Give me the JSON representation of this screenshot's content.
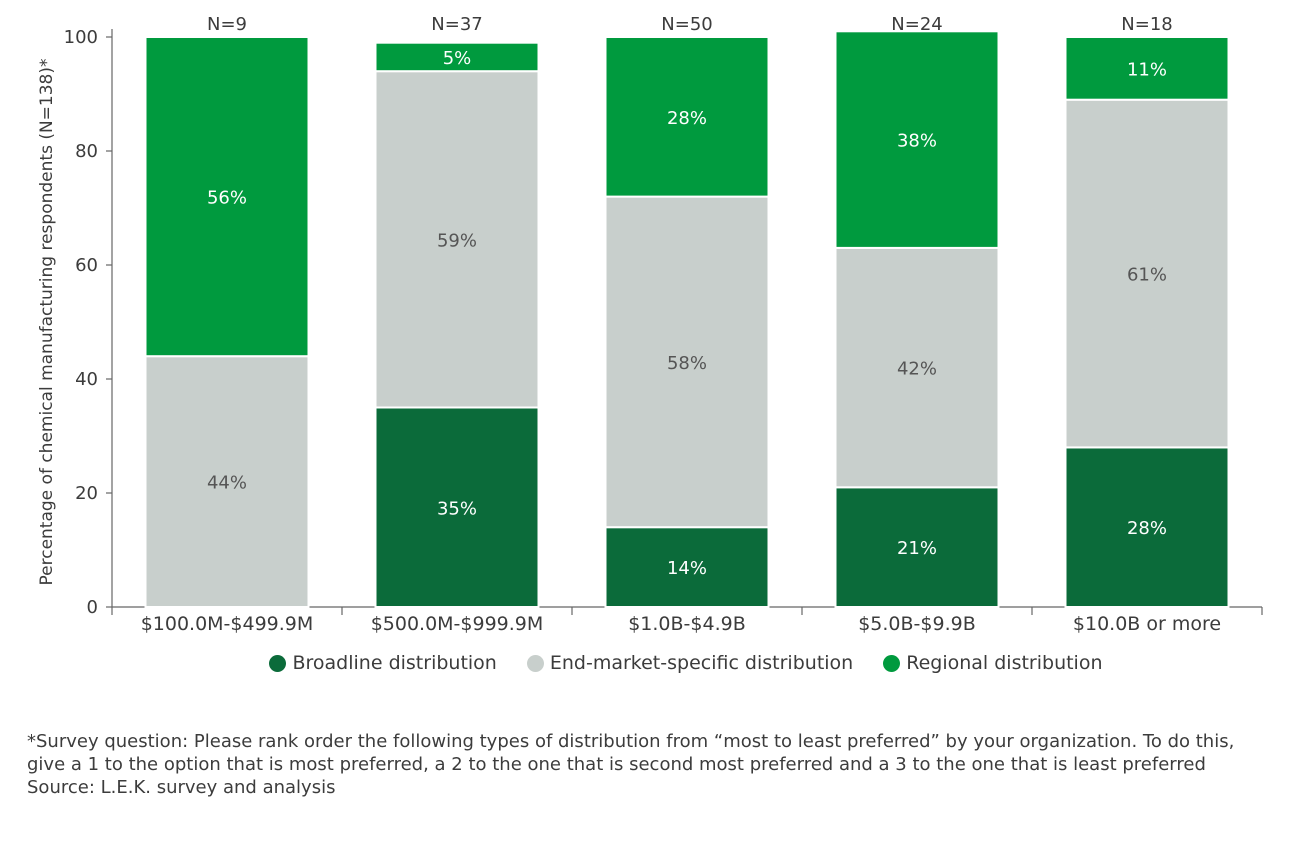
{
  "chart_data": {
    "type": "bar",
    "stacked": true,
    "categories": [
      "$100.0M-$499.9M",
      "$500.0M-$999.9M",
      "$1.0B-$4.9B",
      "$5.0B-$9.9B",
      "$10.0B or more"
    ],
    "top_labels": [
      "N=9",
      "N=37",
      "N=50",
      "N=24",
      "N=18"
    ],
    "series": [
      {
        "name": "Broadline distribution",
        "values": [
          0,
          35,
          14,
          21,
          28
        ],
        "labels": [
          "",
          "35%",
          "14%",
          "21%",
          "28%"
        ],
        "color": "#0b6b3a"
      },
      {
        "name": "End-market-specific distribution",
        "values": [
          44,
          59,
          58,
          42,
          61
        ],
        "labels": [
          "44%",
          "59%",
          "58%",
          "42%",
          "61%"
        ],
        "color": "#c8cfcc"
      },
      {
        "name": "Regional distribution",
        "values": [
          56,
          5,
          28,
          38,
          11
        ],
        "labels": [
          "56%",
          "5%",
          "28%",
          "38%",
          "11%"
        ],
        "color": "#009a3e"
      }
    ],
    "ylabel": "Percentage of chemical manufacturing respondents (N=138)*",
    "xlabel": "",
    "ylim": [
      0,
      100
    ],
    "yticks": [
      0,
      20,
      40,
      60,
      80,
      100
    ],
    "legend_position": "bottom",
    "grid": false
  },
  "footnote": {
    "survey_text": "*Survey question: Please rank order the following types of distribution from “most to least preferred” by your organization. To do this, give a 1 to the option that is most preferred, a 2 to the one that is second most preferred and a 3 to the one that is least preferred",
    "source_text": "Source: L.E.K. survey and analysis"
  }
}
